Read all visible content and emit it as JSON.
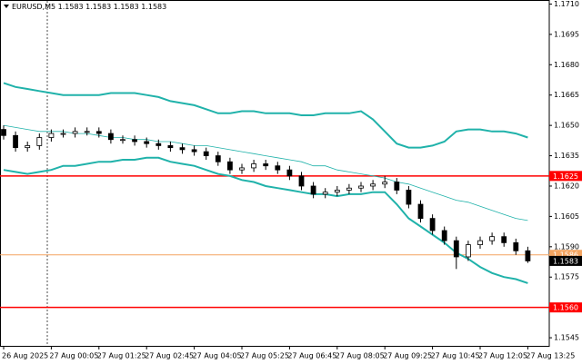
{
  "chart_data": {
    "type": "candlestick",
    "title": "EURUSD,M5  1.1583 1.1583 1.1583 1.1583",
    "categories": [
      "26 Aug 2025",
      null,
      null,
      null,
      "27 Aug 00:05",
      null,
      null,
      null,
      "27 Aug 01:25",
      null,
      null,
      null,
      "27 Aug 02:45",
      null,
      null,
      null,
      "27 Aug 04:05",
      null,
      null,
      null,
      "27 Aug 05:25",
      null,
      null,
      null,
      "27 Aug 06:45",
      null,
      null,
      null,
      "27 Aug 08:05",
      null,
      null,
      null,
      "27 Aug 09:25",
      null,
      null,
      null,
      "27 Aug 10:45",
      null,
      null,
      null,
      "27 Aug 12:05",
      null,
      null,
      null,
      "27 Aug 13:25"
    ],
    "open": [
      1.1648,
      1.1645,
      1.1639,
      1.164,
      1.1644,
      1.1646,
      1.1646,
      1.1647,
      1.1647,
      1.1646,
      1.1643,
      1.1643,
      1.1642,
      1.1641,
      1.164,
      1.1639,
      1.1638,
      1.1637,
      1.1635,
      1.1632,
      1.1628,
      1.1629,
      1.1631,
      1.163,
      1.1628,
      1.1625,
      1.162,
      1.1616,
      1.1617,
      1.1618,
      1.1619,
      1.162,
      1.1621,
      1.1622,
      1.1618,
      1.1611,
      1.1604,
      1.1598,
      1.1593,
      1.1585,
      1.1591,
      1.1593,
      1.1595,
      1.1592,
      1.1588
    ],
    "high": [
      1.165,
      1.1647,
      1.1642,
      1.1646,
      1.1648,
      1.1648,
      1.1649,
      1.1649,
      1.1649,
      1.1648,
      1.1645,
      1.1645,
      1.1644,
      1.1643,
      1.1642,
      1.1641,
      1.164,
      1.1639,
      1.1637,
      1.1634,
      1.1631,
      1.1633,
      1.1633,
      1.1632,
      1.163,
      1.1627,
      1.1622,
      1.1619,
      1.162,
      1.1621,
      1.1622,
      1.1623,
      1.1625,
      1.1624,
      1.162,
      1.1613,
      1.1606,
      1.16,
      1.1595,
      1.1593,
      1.1595,
      1.1597,
      1.1597,
      1.1594,
      1.159
    ],
    "low": [
      1.1643,
      1.1637,
      1.1637,
      1.1638,
      1.1642,
      1.1644,
      1.1644,
      1.1645,
      1.1644,
      1.1641,
      1.1641,
      1.164,
      1.1639,
      1.1638,
      1.1637,
      1.1636,
      1.1635,
      1.1633,
      1.163,
      1.1626,
      1.1626,
      1.1627,
      1.1628,
      1.1626,
      1.1623,
      1.1618,
      1.1614,
      1.1614,
      1.1615,
      1.1616,
      1.1617,
      1.1618,
      1.1619,
      1.1616,
      1.1609,
      1.1602,
      1.1596,
      1.1591,
      1.1579,
      1.1583,
      1.1589,
      1.1591,
      1.159,
      1.1586,
      1.1582
    ],
    "close": [
      1.1645,
      1.1639,
      1.164,
      1.1644,
      1.1646,
      1.1646,
      1.1647,
      1.1647,
      1.1646,
      1.1643,
      1.1643,
      1.1642,
      1.1641,
      1.164,
      1.1639,
      1.1638,
      1.1637,
      1.1635,
      1.1632,
      1.1628,
      1.1629,
      1.1631,
      1.163,
      1.1628,
      1.1625,
      1.162,
      1.1616,
      1.1617,
      1.1618,
      1.1619,
      1.162,
      1.1621,
      1.1622,
      1.1618,
      1.1611,
      1.1604,
      1.1598,
      1.1593,
      1.1585,
      1.1591,
      1.1593,
      1.1595,
      1.1592,
      1.1588,
      1.1583
    ],
    "candle_color": "#000000",
    "series": [
      {
        "color": "#20b2aa",
        "width": 2,
        "values": [
          1.1671,
          1.1669,
          1.1668,
          1.1667,
          1.1666,
          1.1665,
          1.1665,
          1.1665,
          1.1665,
          1.1666,
          1.1666,
          1.1666,
          1.1665,
          1.1664,
          1.1662,
          1.1661,
          1.166,
          1.1658,
          1.1656,
          1.1656,
          1.1657,
          1.1657,
          1.1656,
          1.1656,
          1.1656,
          1.1655,
          1.1655,
          1.1656,
          1.1656,
          1.1656,
          1.1657,
          1.1653,
          1.1647,
          1.1641,
          1.1639,
          1.1639,
          1.164,
          1.1642,
          1.1647,
          1.1648,
          1.1648,
          1.1647,
          1.1647,
          1.1646,
          1.1644
        ]
      },
      {
        "color": "#20b2aa",
        "width": 0.8,
        "values": [
          1.165,
          1.1649,
          1.1648,
          1.1647,
          1.1647,
          1.1647,
          1.1646,
          1.1646,
          1.1645,
          1.1644,
          1.1644,
          1.1643,
          1.1643,
          1.1642,
          1.1642,
          1.1641,
          1.164,
          1.164,
          1.1639,
          1.1638,
          1.1637,
          1.1636,
          1.1635,
          1.1634,
          1.1633,
          1.1632,
          1.163,
          1.163,
          1.1628,
          1.1627,
          1.1626,
          1.1625,
          1.1624,
          1.1622,
          1.1621,
          1.1619,
          1.1617,
          1.1615,
          1.1613,
          1.1612,
          1.161,
          1.1608,
          1.1606,
          1.1604,
          1.1603
        ]
      },
      {
        "color": "#20b2aa",
        "width": 2,
        "values": [
          1.1628,
          1.1627,
          1.1626,
          1.1627,
          1.1628,
          1.163,
          1.163,
          1.1631,
          1.1632,
          1.1632,
          1.1633,
          1.1633,
          1.1634,
          1.1634,
          1.1632,
          1.1631,
          1.163,
          1.1628,
          1.1626,
          1.1625,
          1.1623,
          1.1622,
          1.162,
          1.1619,
          1.1618,
          1.1617,
          1.1616,
          1.1616,
          1.1615,
          1.1616,
          1.1616,
          1.1617,
          1.1617,
          1.1611,
          1.1604,
          1.16,
          1.1596,
          1.1592,
          1.1587,
          1.1584,
          1.158,
          1.1577,
          1.1575,
          1.1574,
          1.1572
        ]
      }
    ],
    "hlines": [
      {
        "value": 1.1625,
        "label": "1.1625",
        "color": "#ff0000",
        "width": 1.5
      },
      {
        "value": 1.156,
        "label": "1.1560",
        "color": "#ff0000",
        "width": 1.5
      },
      {
        "value": 1.1586,
        "label": "1.1586",
        "color": "#f4a460",
        "width": 1
      }
    ],
    "current_price": {
      "value": 1.1583,
      "label": "1.1583",
      "color": "#000000"
    },
    "ylim": [
      1.1541,
      1.1712
    ],
    "yticks": [
      {
        "value": 1.171,
        "label": "1.1710"
      },
      1.1695,
      {
        "value": 1.168,
        "label": "1.1680"
      },
      1.1665,
      {
        "value": 1.165,
        "label": "1.1650"
      },
      1.1635,
      {
        "value": 1.162,
        "label": "1.1620"
      },
      1.1605,
      {
        "value": 1.159,
        "label": "1.1590"
      },
      1.1575,
      1.1545
    ],
    "grid": false
  }
}
